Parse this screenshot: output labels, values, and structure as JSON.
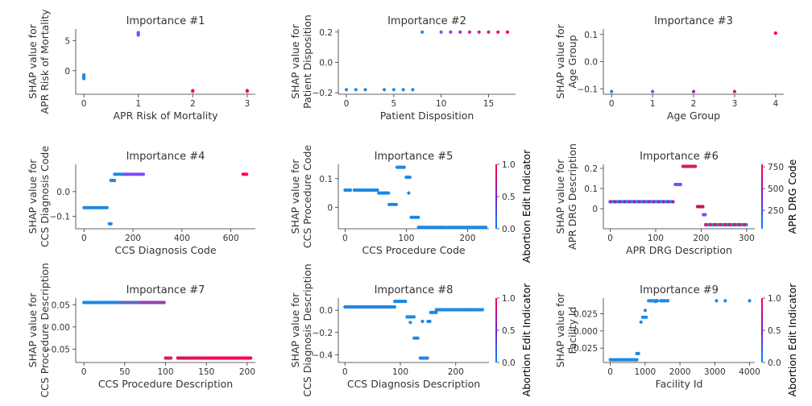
{
  "chart_data": [
    {
      "type": "scatter",
      "title": "Importance #1",
      "xlabel": "APR Risk of Mortality",
      "ylabel": [
        "SHAP value for",
        "APR Risk of Mortality"
      ],
      "xlim": [
        -0.15,
        3.15
      ],
      "ylim": [
        -3.9,
        6.9
      ],
      "xticks": [
        0,
        1,
        2,
        3
      ],
      "yticks": [
        0,
        5
      ],
      "point_groups": [
        {
          "x": 0,
          "y": [
            -1.3,
            -1.1,
            -0.9,
            -0.7
          ],
          "color": "#1e88e5"
        },
        {
          "x": 1,
          "y": [
            5.9,
            6.1,
            6.3
          ],
          "color": "#7c4dff"
        },
        {
          "x": 2,
          "y": [
            -3.4,
            -3.3
          ],
          "color": "#d81b60"
        },
        {
          "x": 3,
          "y": [
            -3.4,
            -3.3
          ],
          "color": "#e0115f"
        }
      ]
    },
    {
      "type": "scatter",
      "title": "Importance #2",
      "xlabel": "Patient Disposition",
      "ylabel": [
        "SHAP value for",
        "Patient Disposition"
      ],
      "xlim": [
        -0.85,
        17.85
      ],
      "ylim": [
        -0.21,
        0.22
      ],
      "xticks": [
        0,
        5,
        10,
        15
      ],
      "yticks": [
        -0.2,
        0.0,
        0.2
      ],
      "point_groups": [
        {
          "x": 0,
          "y": [
            -0.18
          ],
          "color": "#1e88e5"
        },
        {
          "x": 1,
          "y": [
            -0.18
          ],
          "color": "#1e88e5"
        },
        {
          "x": 2,
          "y": [
            -0.18
          ],
          "color": "#1e88e5"
        },
        {
          "x": 4,
          "y": [
            -0.18
          ],
          "color": "#1e88e5"
        },
        {
          "x": 5,
          "y": [
            -0.18
          ],
          "color": "#1e88e5"
        },
        {
          "x": 6,
          "y": [
            -0.18
          ],
          "color": "#1e88e5"
        },
        {
          "x": 7,
          "y": [
            -0.18
          ],
          "color": "#1e88e5"
        },
        {
          "x": 8,
          "y": [
            0.2
          ],
          "color": "#1e88e5"
        },
        {
          "x": 10,
          "y": [
            0.2
          ],
          "color": "#7c4dff"
        },
        {
          "x": 11,
          "y": [
            0.2
          ],
          "color": "#8a3fe0"
        },
        {
          "x": 12,
          "y": [
            0.2
          ],
          "color": "#a532c4"
        },
        {
          "x": 13,
          "y": [
            0.2
          ],
          "color": "#b82aa6"
        },
        {
          "x": 14,
          "y": [
            0.2
          ],
          "color": "#c6238c"
        },
        {
          "x": 15,
          "y": [
            0.2
          ],
          "color": "#d41f75"
        },
        {
          "x": 16,
          "y": [
            0.2
          ],
          "color": "#de1a66"
        },
        {
          "x": 17,
          "y": [
            0.2
          ],
          "color": "#ff0052"
        }
      ]
    },
    {
      "type": "scatter",
      "title": "Importance #3",
      "xlabel": "Age Group",
      "ylabel": [
        "SHAP value for",
        "Age Group"
      ],
      "xlim": [
        -0.2,
        4.2
      ],
      "ylim": [
        -0.12,
        0.12
      ],
      "xticks": [
        0,
        1,
        2,
        3,
        4
      ],
      "yticks": [
        -0.1,
        0.0,
        0.1
      ],
      "point_groups": [
        {
          "x": 0,
          "y": [
            -0.11
          ],
          "color": "#1e88e5"
        },
        {
          "x": 1,
          "y": [
            -0.11
          ],
          "color": "#5c6bc0"
        },
        {
          "x": 2,
          "y": [
            -0.11
          ],
          "color": "#9c27b0"
        },
        {
          "x": 3,
          "y": [
            -0.11
          ],
          "color": "#d81b60"
        },
        {
          "x": 4,
          "y": [
            0.105
          ],
          "color": "#ff0052"
        }
      ]
    },
    {
      "type": "scatter",
      "title": "Importance #4",
      "xlabel": "CCS Diagnosis Code",
      "ylabel": [
        "SHAP value for",
        "CCS Diagnosis Code"
      ],
      "xlim": [
        -34,
        700
      ],
      "ylim": [
        -0.15,
        0.11
      ],
      "xticks": [
        0,
        200,
        400,
        600
      ],
      "yticks": [
        -0.1,
        0.0
      ],
      "segments": [
        {
          "x0": 0,
          "x1": 100,
          "y": -0.065,
          "color": "#1e88e5"
        },
        {
          "x0": 103,
          "x1": 115,
          "y": -0.13,
          "color": "#1e88e5"
        },
        {
          "x0": 110,
          "x1": 125,
          "y": 0.045,
          "color": "#1e88e5"
        },
        {
          "x0": 125,
          "x1": 170,
          "y": 0.07,
          "color": "#1e88e5"
        },
        {
          "x0": 170,
          "x1": 245,
          "y": 0.07,
          "color": "#7c4dff"
        },
        {
          "x0": 650,
          "x1": 670,
          "y": 0.07,
          "color": "#ff0052"
        }
      ]
    },
    {
      "type": "scatter",
      "title": "Importance #5",
      "xlabel": "CCS Procedure Code",
      "ylabel": [
        "SHAP value for",
        "CCS Procedure Code"
      ],
      "xlim": [
        -11,
        235
      ],
      "ylim": [
        -0.075,
        0.15
      ],
      "xticks": [
        0,
        100,
        200
      ],
      "yticks": [
        0.0,
        0.1
      ],
      "colorbar": {
        "label": "Abortion Edit Indicator",
        "ticks": [
          "0.0",
          "0.5",
          "1.0"
        ]
      },
      "segments": [
        {
          "x0": 0,
          "x1": 10,
          "y": 0.06,
          "color": "#1e88e5"
        },
        {
          "x0": 15,
          "x1": 55,
          "y": 0.06,
          "color": "#1e88e5"
        },
        {
          "x0": 55,
          "x1": 65,
          "y": 0.05,
          "color": "#1e88e5"
        },
        {
          "x0": 65,
          "x1": 73,
          "y": 0.05,
          "color": "#1e88e5"
        },
        {
          "x0": 72,
          "x1": 85,
          "y": 0.01,
          "color": "#1e88e5"
        },
        {
          "x0": 85,
          "x1": 97,
          "y": 0.14,
          "color": "#1e88e5"
        },
        {
          "x0": 100,
          "x1": 107,
          "y": 0.105,
          "color": "#1e88e5"
        },
        {
          "x0": 108,
          "x1": 120,
          "y": -0.035,
          "color": "#1e88e5"
        },
        {
          "x0": 120,
          "x1": 165,
          "y": -0.07,
          "color": "#1e88e5"
        },
        {
          "x0": 168,
          "x1": 195,
          "y": -0.07,
          "color": "#1e88e5"
        },
        {
          "x0": 198,
          "x1": 230,
          "y": -0.07,
          "color": "#1e88e5"
        }
      ],
      "points": [
        [
          104,
          0.05,
          "#1e88e5"
        ]
      ]
    },
    {
      "type": "scatter",
      "title": "Importance #6",
      "xlabel": "APR DRG Description",
      "ylabel": [
        "SHAP value for",
        "APR DRG Description"
      ],
      "xlim": [
        -15,
        318
      ],
      "ylim": [
        -0.1,
        0.22
      ],
      "xticks": [
        0,
        100,
        200,
        300
      ],
      "yticks": [
        0.0,
        0.1,
        0.2
      ],
      "colorbar": {
        "label": "APR DRG Code",
        "ticks": [
          "250",
          "500",
          "750"
        ]
      },
      "segments": [
        {
          "x0": 0,
          "x1": 140,
          "y": 0.035,
          "color": "#1e88e5"
        },
        {
          "x0": 0,
          "x1": 140,
          "y": 0.034,
          "color": "#9c27b0",
          "dashed": true
        },
        {
          "x0": 143,
          "x1": 155,
          "y": 0.12,
          "color": "#7c4dff"
        },
        {
          "x0": 160,
          "x1": 190,
          "y": 0.21,
          "color": "#d81b60"
        },
        {
          "x0": 192,
          "x1": 205,
          "y": 0.01,
          "color": "#c2185b"
        },
        {
          "x0": 205,
          "x1": 210,
          "y": -0.03,
          "color": "#7c4dff"
        },
        {
          "x0": 210,
          "x1": 300,
          "y": -0.08,
          "color": "#1e88e5"
        },
        {
          "x0": 210,
          "x1": 300,
          "y": -0.079,
          "color": "#d81b60",
          "dashed": true
        }
      ]
    },
    {
      "type": "scatter",
      "title": "Importance #7",
      "xlabel": "CCS Procedure Description",
      "ylabel": [
        "SHAP value for",
        "CCS Procedure Description"
      ],
      "xlim": [
        -10,
        210
      ],
      "ylim": [
        -0.08,
        0.065
      ],
      "xticks": [
        0,
        50,
        100,
        150,
        200
      ],
      "yticks": [
        -0.05,
        0.0,
        0.05
      ],
      "segments": [
        {
          "x0": 0,
          "x1": 45,
          "y": 0.055,
          "color": "#1e88e5"
        },
        {
          "x0": 45,
          "x1": 70,
          "y": 0.055,
          "color": "#5c6bc0"
        },
        {
          "x0": 70,
          "x1": 100,
          "y": 0.055,
          "color": "#8e44ad"
        },
        {
          "x0": 100,
          "x1": 108,
          "y": -0.07,
          "color": "#d81b60"
        },
        {
          "x0": 115,
          "x1": 150,
          "y": -0.07,
          "color": "#e0115f"
        },
        {
          "x0": 150,
          "x1": 205,
          "y": -0.07,
          "color": "#ff0052"
        }
      ]
    },
    {
      "type": "scatter",
      "title": "Importance #8",
      "xlabel": "CCS Diagnosis Description",
      "ylabel": [
        "SHAP value for",
        "CCS Diagnosis Description"
      ],
      "xlim": [
        -12,
        260
      ],
      "ylim": [
        -0.47,
        0.11
      ],
      "xticks": [
        0,
        100,
        200
      ],
      "yticks": [
        -0.4,
        -0.2,
        0.0
      ],
      "colorbar": {
        "label": "Abortion Edit Indicator",
        "ticks": [
          "0.0",
          "0.5",
          "1.0"
        ]
      },
      "segments": [
        {
          "x0": 0,
          "x1": 90,
          "y": 0.03,
          "color": "#1e88e5"
        },
        {
          "x0": 90,
          "x1": 112,
          "y": 0.08,
          "color": "#1e88e5"
        },
        {
          "x0": 112,
          "x1": 125,
          "y": -0.06,
          "color": "#1e88e5"
        },
        {
          "x0": 125,
          "x1": 132,
          "y": -0.25,
          "color": "#1e88e5"
        },
        {
          "x0": 136,
          "x1": 150,
          "y": -0.43,
          "color": "#1e88e5"
        },
        {
          "x0": 150,
          "x1": 155,
          "y": -0.1,
          "color": "#1e88e5"
        },
        {
          "x0": 155,
          "x1": 165,
          "y": -0.02,
          "color": "#1e88e5"
        },
        {
          "x0": 165,
          "x1": 250,
          "y": 0.005,
          "color": "#1e88e5"
        }
      ],
      "points": [
        [
          118,
          -0.11,
          "#1e88e5"
        ],
        [
          140,
          -0.1,
          "#1e88e5"
        ]
      ]
    },
    {
      "type": "scatter",
      "title": "Importance #9",
      "xlabel": "Facility Id",
      "ylabel": [
        "SHAP value for",
        "Facility Id"
      ],
      "xlim": [
        -200,
        4150
      ],
      "ylim": [
        -0.046,
        0.048
      ],
      "xticks": [
        0,
        1000,
        2000,
        3000,
        4000
      ],
      "yticks": [
        -0.025,
        0.0,
        0.025
      ],
      "colorbar": {
        "label": "Abortion Edit Indicator",
        "ticks": [
          "0.0",
          "0.5",
          "1.0"
        ]
      },
      "segments": [
        {
          "x0": 0,
          "x1": 800,
          "y": -0.042,
          "color": "#1e88e5"
        },
        {
          "x0": 760,
          "x1": 860,
          "y": -0.033,
          "color": "#1e88e5"
        },
        {
          "x0": 880,
          "x1": 920,
          "y": 0.013,
          "color": "#1e88e5"
        },
        {
          "x0": 930,
          "x1": 1050,
          "y": 0.02,
          "color": "#1e88e5"
        },
        {
          "x0": 1100,
          "x1": 1400,
          "y": 0.044,
          "color": "#1e88e5"
        },
        {
          "x0": 1450,
          "x1": 1700,
          "y": 0.044,
          "color": "#1e88e5"
        }
      ],
      "points": [
        [
          3050,
          0.044,
          "#1e88e5"
        ],
        [
          3300,
          0.044,
          "#1e88e5"
        ],
        [
          4000,
          0.044,
          "#1e88e5"
        ],
        [
          1000,
          0.03,
          "#1e88e5"
        ],
        [
          1300,
          0.043,
          "#1e88e5"
        ]
      ]
    }
  ]
}
